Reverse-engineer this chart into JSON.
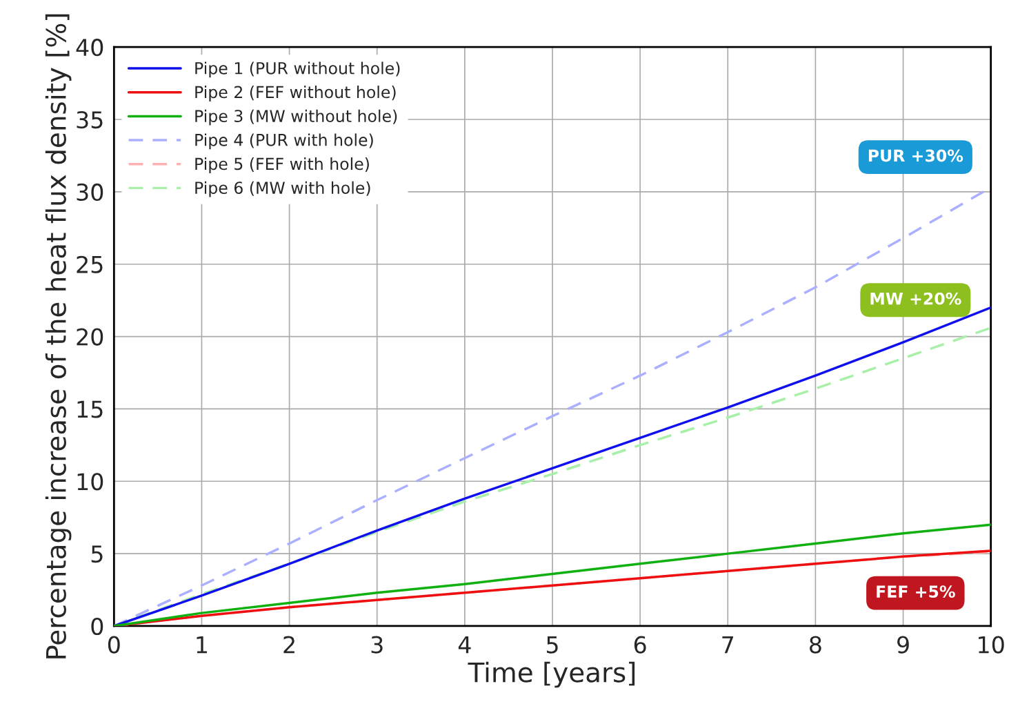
{
  "chart_data": {
    "type": "line",
    "xlabel": "Time [years]",
    "ylabel": "Percentage increase of the heat flux density [%]",
    "x": [
      0,
      1,
      2,
      3,
      4,
      5,
      6,
      7,
      8,
      9,
      10
    ],
    "series": [
      {
        "name": "Pipe 1 (PUR without hole)",
        "color": "#1010ee",
        "line_style": "solid",
        "values": [
          0,
          2.1,
          4.3,
          6.6,
          8.8,
          10.9,
          13.0,
          15.1,
          17.3,
          19.6,
          22.0
        ]
      },
      {
        "name": "Pipe 2 (FEF without hole)",
        "color": "#ee1010",
        "line_style": "solid",
        "values": [
          0,
          0.7,
          1.3,
          1.8,
          2.3,
          2.8,
          3.3,
          3.8,
          4.3,
          4.8,
          5.2
        ]
      },
      {
        "name": "Pipe 3 (MW without hole)",
        "color": "#10b010",
        "line_style": "solid",
        "values": [
          0,
          0.9,
          1.6,
          2.3,
          2.9,
          3.6,
          4.3,
          5.0,
          5.7,
          6.4,
          7.0
        ]
      },
      {
        "name": "Pipe 4 (PUR with hole)",
        "color": "#aab0ff",
        "line_style": "dashed",
        "values": [
          0,
          2.8,
          5.7,
          8.7,
          11.6,
          14.5,
          17.3,
          20.3,
          23.4,
          26.8,
          30.3
        ]
      },
      {
        "name": "Pipe 5 (FEF with hole)",
        "color": "#ffb0b0",
        "line_style": "dashed",
        "values": [
          0,
          0.7,
          1.3,
          1.8,
          2.3,
          2.8,
          3.3,
          3.8,
          4.3,
          4.8,
          5.1
        ]
      },
      {
        "name": "Pipe 6 (MW with hole)",
        "color": "#a8f0a8",
        "line_style": "dashed",
        "values": [
          0,
          2.2,
          4.3,
          6.5,
          8.6,
          10.5,
          12.5,
          14.4,
          16.4,
          18.5,
          20.6
        ]
      }
    ],
    "annotations": [
      "PUR +30%",
      "MW +20%",
      "FEF +5%"
    ],
    "xlim": [
      0,
      10
    ],
    "xticks": [
      0,
      1,
      2,
      3,
      4,
      5,
      6,
      7,
      8,
      9,
      10
    ],
    "ylim": [
      0,
      40
    ],
    "yticks": [
      0,
      5,
      10,
      15,
      20,
      25,
      30,
      35,
      40
    ],
    "grid": true,
    "legend": "top left",
    "marker": "none"
  }
}
